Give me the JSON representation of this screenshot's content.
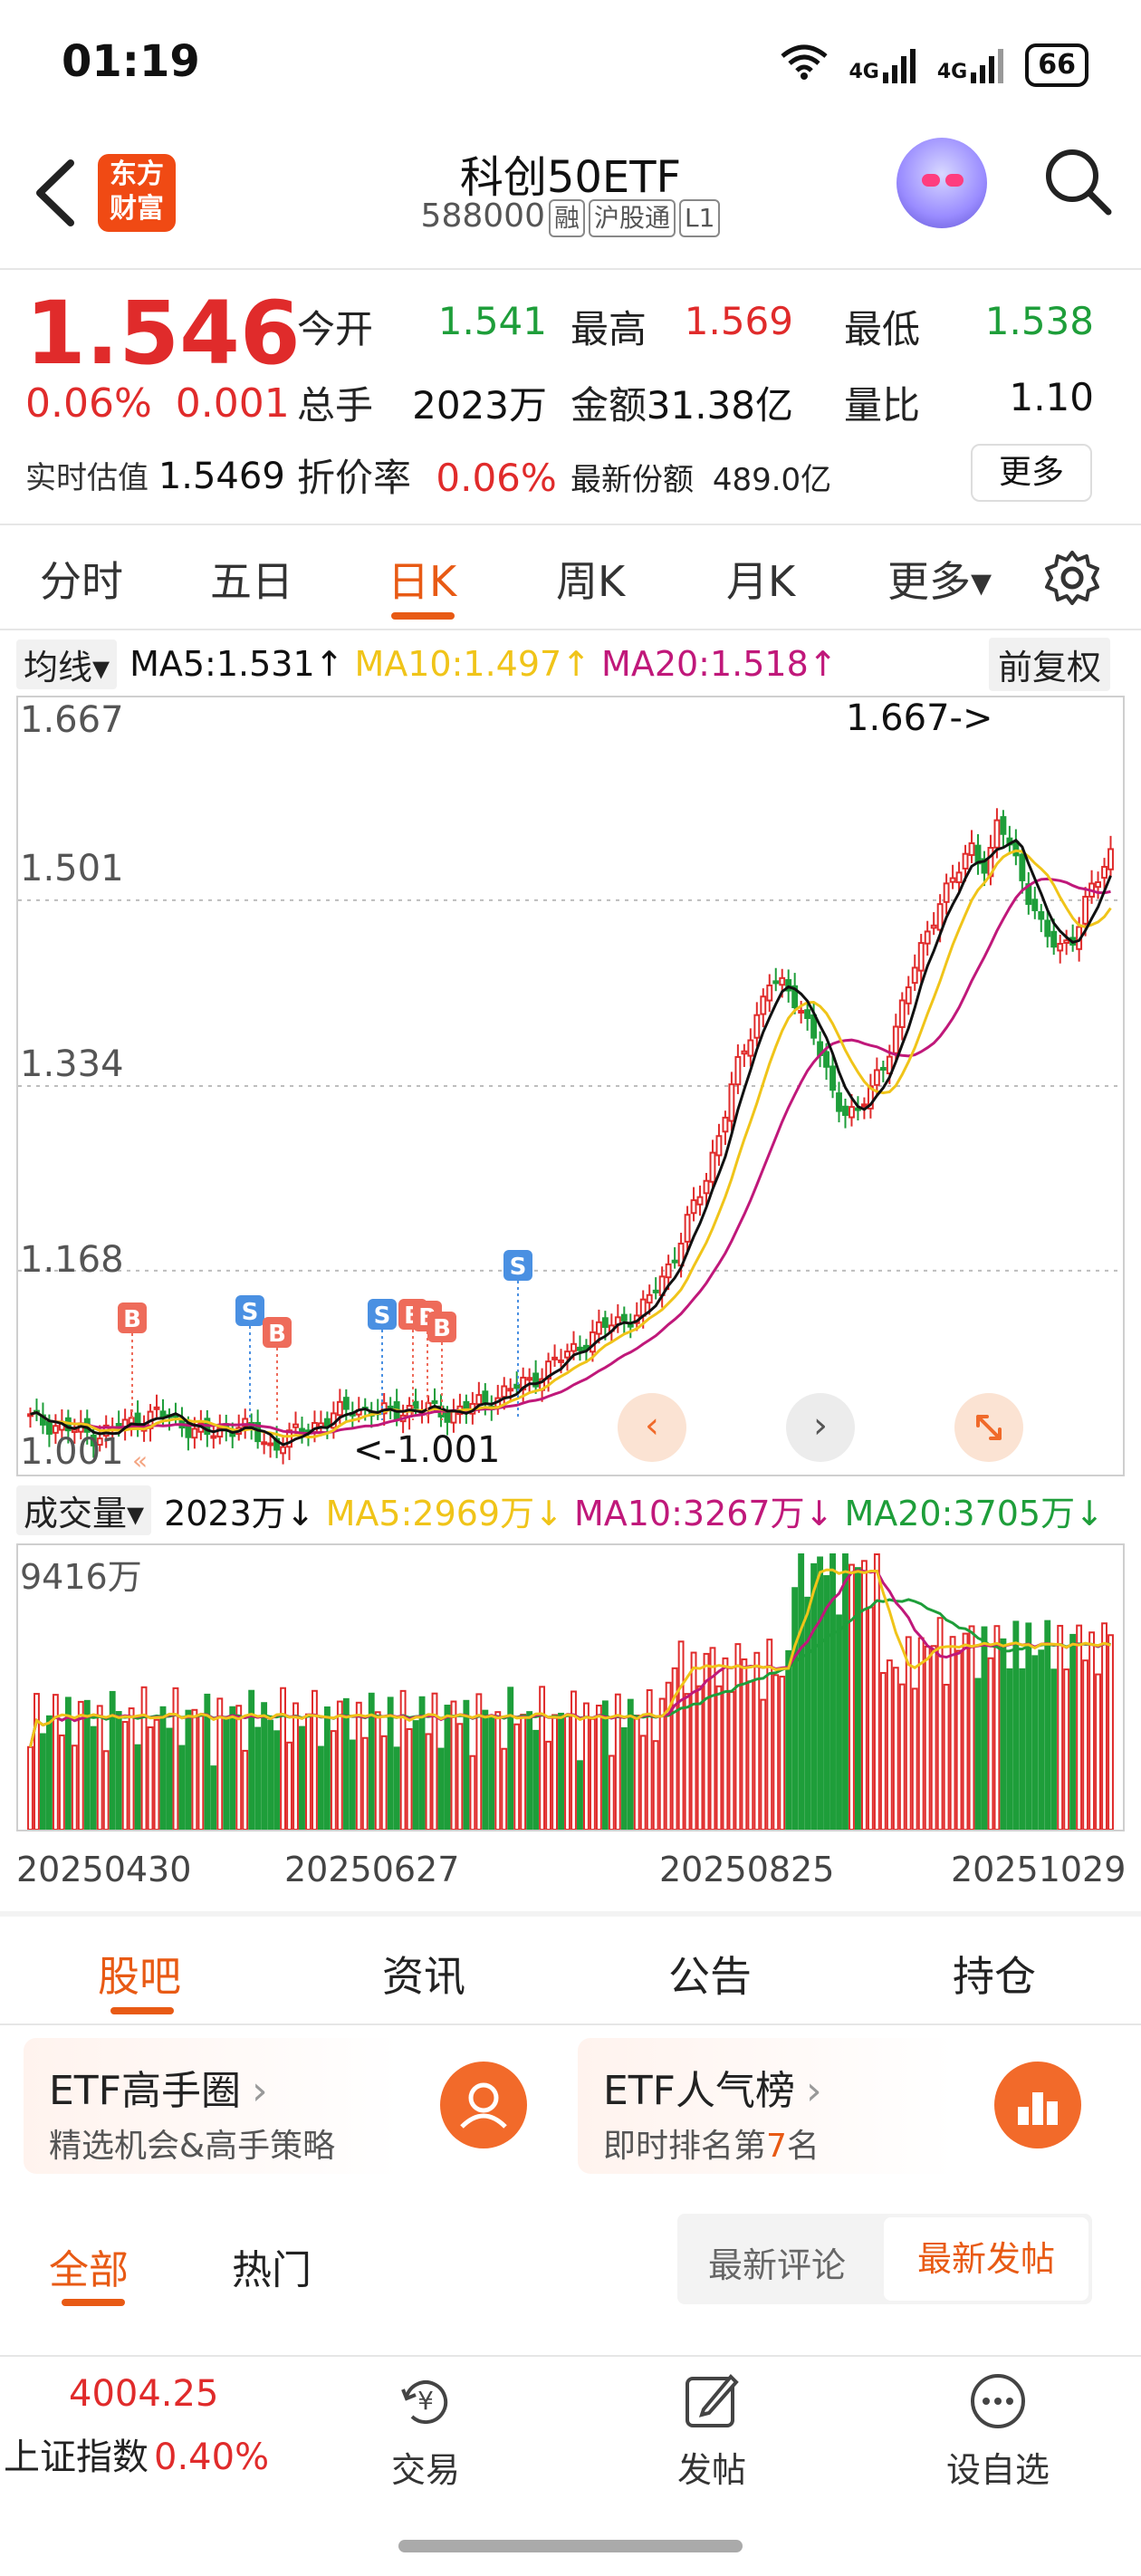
{
  "status": {
    "time": "01:19",
    "net1": "4G",
    "net2": "4G",
    "battery": "66"
  },
  "header": {
    "title": "科创50ETF",
    "code": "588000",
    "tags": [
      "融",
      "沪股通",
      "L1"
    ],
    "logo": [
      "东方",
      "财富"
    ]
  },
  "quote": {
    "price": "1.546",
    "change_pct": "0.06%",
    "change_abs": "0.001",
    "fields": [
      {
        "label": "今开",
        "value": "1.541",
        "color": "green"
      },
      {
        "label": "最高",
        "value": "1.569",
        "color": "red"
      },
      {
        "label": "最低",
        "value": "1.538",
        "color": "green"
      },
      {
        "label": "总手",
        "value": "2023万",
        "color": "black"
      },
      {
        "label": "金额",
        "value": "31.38亿",
        "color": "black"
      },
      {
        "label": "量比",
        "value": "1.10",
        "color": "black"
      }
    ],
    "est_label": "实时估值",
    "est_value": "1.5469",
    "discount_label": "折价率",
    "discount_value": "0.06%",
    "shares_label": "最新份额",
    "shares_value": "489.0亿",
    "more": "更多"
  },
  "period_tabs": [
    "分时",
    "五日",
    "日K",
    "周K",
    "月K",
    "更多▾"
  ],
  "active_period": "日K",
  "ma": {
    "select": "均线▾",
    "ma5": "MA5:1.531↑",
    "ma10": "MA10:1.497↑",
    "ma20": "MA20:1.518↑",
    "fq": "前复权"
  },
  "chart_data": {
    "type": "candlestick",
    "y_ticks": [
      "1.667",
      "1.501",
      "1.334",
      "1.168",
      "1.001"
    ],
    "ylim": [
      1.001,
      1.667
    ],
    "max_marker": "1.667->",
    "min_marker": "<-1.001",
    "signals": [
      "B",
      "S",
      "B",
      "S",
      "B",
      "B",
      "B",
      "S"
    ],
    "x_ticks": [
      "20250430",
      "20250627",
      "20250825",
      "20251029"
    ],
    "colors": {
      "up": "#e02b2b",
      "down": "#1e9e3a",
      "ma5": "#111111",
      "ma10": "#f0c419",
      "ma20": "#c0187a"
    }
  },
  "volume": {
    "select": "成交量▾",
    "vol": "2023万↓",
    "ma5": "MA5:2969万↓",
    "ma10": "MA10:3267万↓",
    "ma20": "MA20:3705万↓",
    "max": "9416万"
  },
  "bottom_tabs": [
    "股吧",
    "资讯",
    "公告",
    "持仓"
  ],
  "cards": [
    {
      "title": "ETF高手圈",
      "sub": "精选机会&高手策略"
    },
    {
      "title": "ETF人气榜",
      "sub_pre": "即时排名第",
      "sub_num": "7",
      "sub_post": "名"
    }
  ],
  "feed_tabs": [
    "全部",
    "热门"
  ],
  "sort": [
    "最新评论",
    "最新发帖"
  ],
  "nav": {
    "index_value": "4004.25",
    "index_name": "上证指数",
    "index_pct": "0.40%",
    "items": [
      "交易",
      "发帖",
      "设自选"
    ]
  }
}
